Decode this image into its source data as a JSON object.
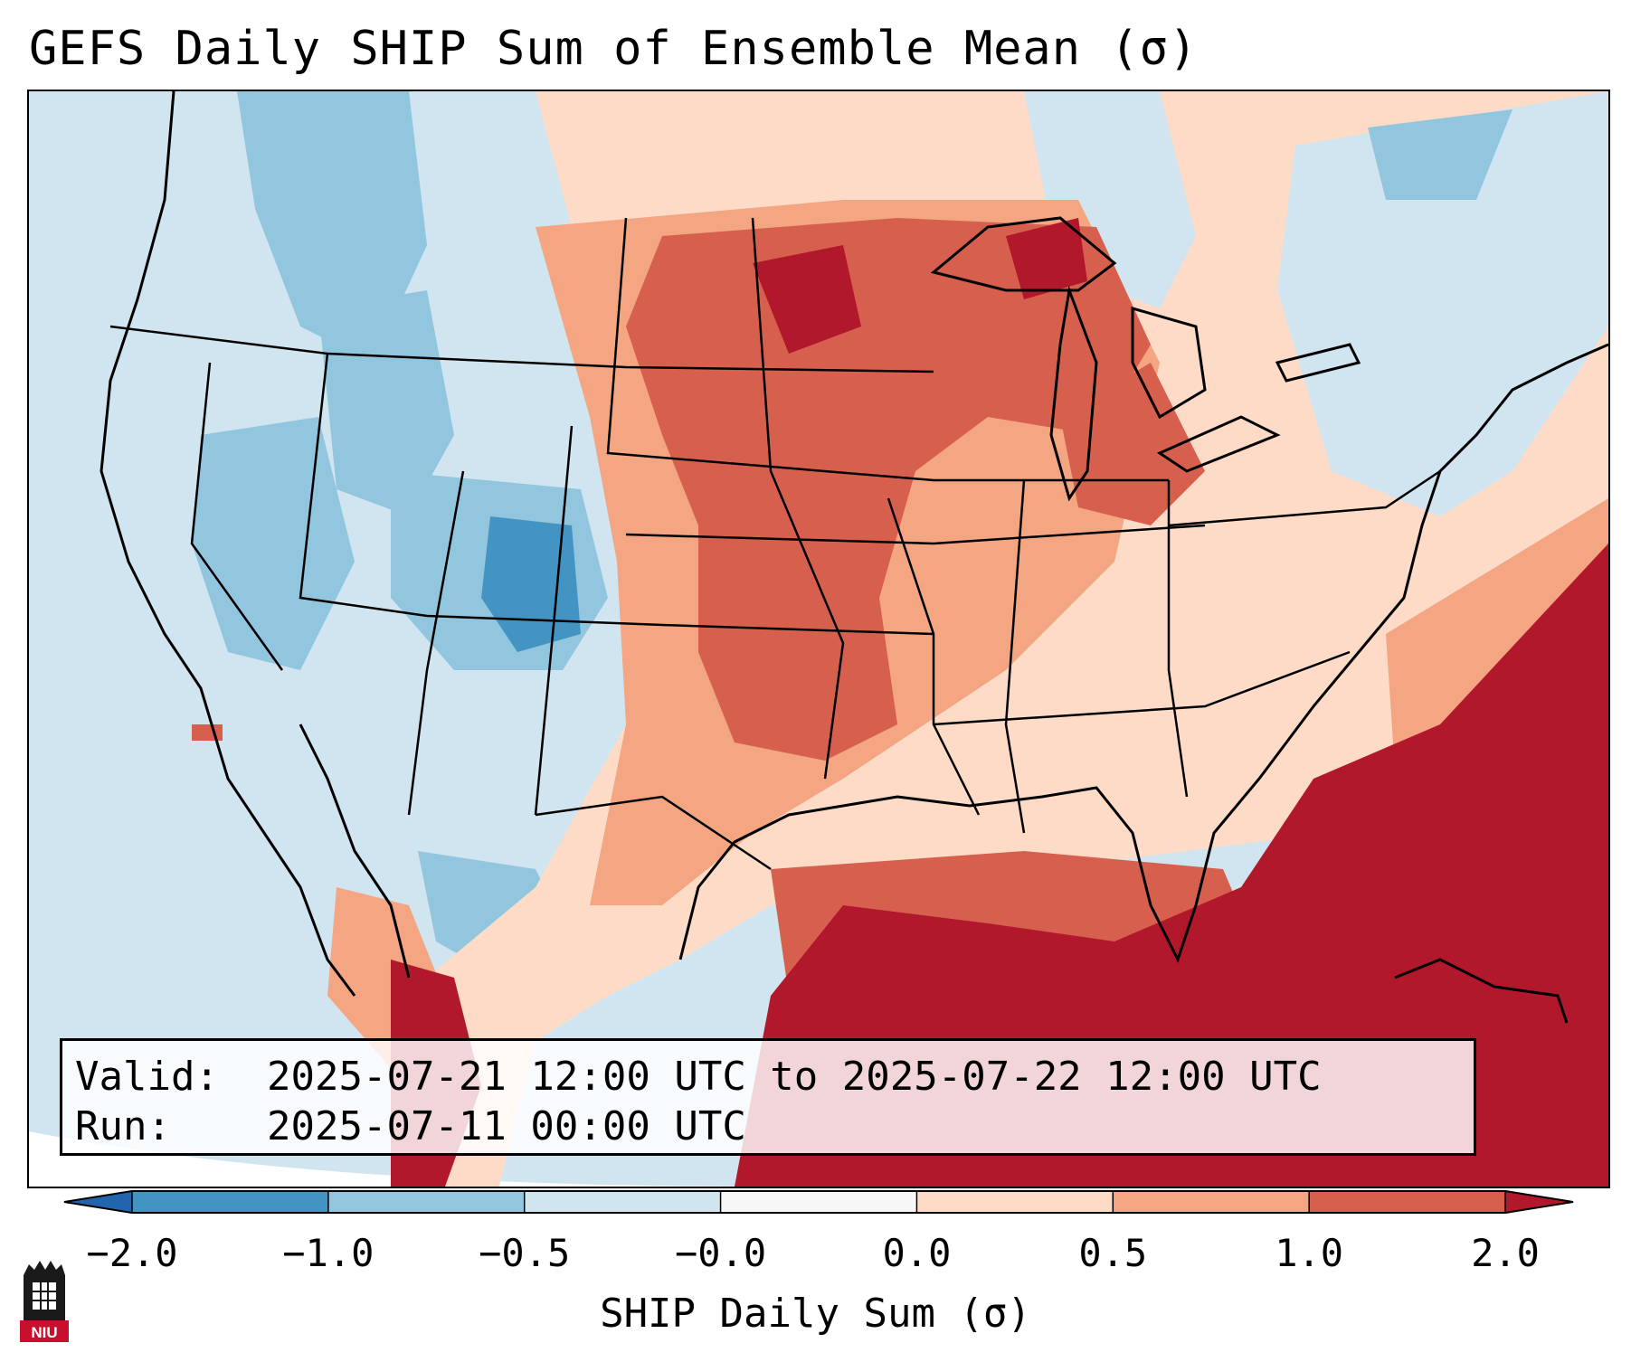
{
  "title": "GEFS Daily SHIP Sum of Ensemble Mean (σ)",
  "info": {
    "valid_label": "Valid:",
    "valid_value": "2025-07-21 12:00 UTC to 2025-07-22 12:00 UTC",
    "run_label": "Run:",
    "run_value": "2025-07-11 00:00 UTC"
  },
  "colorbar": {
    "label": "SHIP Daily Sum (σ)",
    "ticks": [
      "−2.0",
      "−1.0",
      "−0.5",
      "−0.0",
      "0.0",
      "0.5",
      "1.0",
      "2.0"
    ],
    "bin_colors": [
      "#4393c3",
      "#92c5de",
      "#d1e5f0",
      "#f7f7f7",
      "#fddbc7",
      "#f4a582",
      "#d6604d"
    ],
    "under_color": "#2166ac",
    "over_color": "#b2182b"
  },
  "map": {
    "ocean_color": "#d1e5f0",
    "region": "Contiguous United States with Gulf of Mexico and western Atlantic"
  },
  "logo": {
    "text": "NIU",
    "color": "#c8102e"
  }
}
